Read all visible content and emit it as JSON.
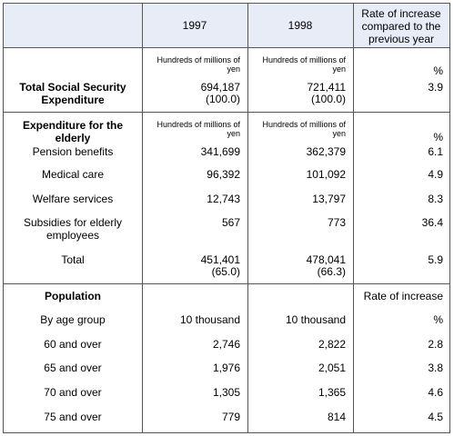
{
  "header": {
    "col_1997": "1997",
    "col_1998": "1998",
    "col_rate": "Rate of increase compared to the previous year"
  },
  "total_section": {
    "unit_1997": "Hundreds of millions of yen",
    "unit_1998": "Hundreds of millions of yen",
    "unit_rate": "%",
    "label": "Total Social Security Expenditure",
    "value_1997": "694,187",
    "share_1997": "(100.0)",
    "value_1998": "721,411",
    "share_1998": "(100.0)",
    "rate": "3.9"
  },
  "elderly_section": {
    "heading": "Expenditure for the elderly",
    "unit_1997": "Hundreds of millions of yen",
    "unit_1998": "Hundreds of millions of yen",
    "unit_rate": "%",
    "rows": [
      {
        "label": "Pension benefits",
        "v1997": "341,699",
        "v1998": "362,379",
        "rate": "6.1"
      },
      {
        "label": "Medical care",
        "v1997": "96,392",
        "v1998": "101,092",
        "rate": "4.9"
      },
      {
        "label": "Welfare services",
        "v1997": "12,743",
        "v1998": "13,797",
        "rate": "8.3"
      },
      {
        "label": "Subsidies for elderly employees",
        "v1997": "567",
        "v1998": "773",
        "rate": "36.4"
      }
    ],
    "total": {
      "label": "Total",
      "v1997": "451,401",
      "share1997": "(65.0)",
      "v1998": "478,041",
      "share1998": "(66.3)",
      "rate": "5.9"
    }
  },
  "population_section": {
    "heading": "Population",
    "rate_heading": "Rate of increase",
    "group_label": "By age group",
    "unit_1997": "10 thousand",
    "unit_1998": "10 thousand",
    "unit_rate": "%",
    "rows": [
      {
        "label": "60 and over",
        "v1997": "2,746",
        "v1998": "2,822",
        "rate": "2.8"
      },
      {
        "label": "65 and over",
        "v1997": "1,976",
        "v1998": "2,051",
        "rate": "3.8"
      },
      {
        "label": "70 and over",
        "v1997": "1,305",
        "v1998": "1,365",
        "rate": "4.6"
      },
      {
        "label": "75 and over",
        "v1997": "779",
        "v1998": "814",
        "rate": "4.5"
      }
    ]
  }
}
